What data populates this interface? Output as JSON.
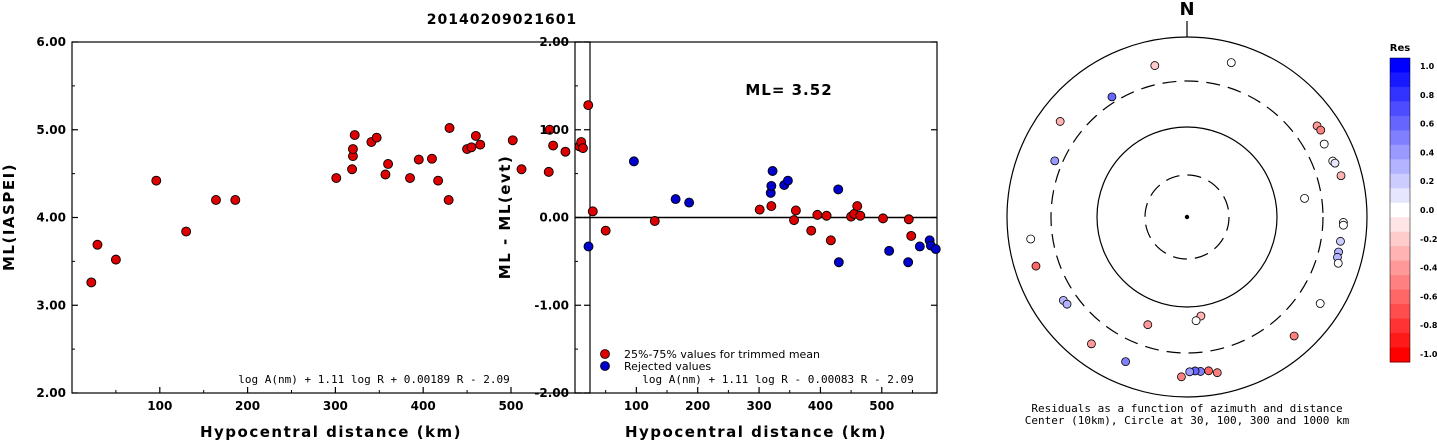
{
  "title": "20140209021601",
  "colors": {
    "red": "#dd0000",
    "blue": "#0000cc",
    "black": "#000000"
  },
  "chart_data": [
    {
      "type": "scatter",
      "title": "20140209021601",
      "xlabel": "Hypocentral distance (km)",
      "ylabel": "ML(IASPEI)",
      "xlim": [
        0,
        590
      ],
      "ylim": [
        2.0,
        6.0
      ],
      "xticks": [
        "100",
        "200",
        "300",
        "400",
        "500"
      ],
      "yticks": [
        "2.00",
        "3.00",
        "4.00",
        "5.00",
        "6.00"
      ],
      "formula": "log A(nm) + 1.11 log R + 0.00189 R - 2.09",
      "series": [
        {
          "color": "red",
          "points": [
            [
              22,
              3.26
            ],
            [
              29,
              3.69
            ],
            [
              50,
              3.52
            ],
            [
              96,
              4.42
            ],
            [
              130,
              3.84
            ],
            [
              164,
              4.2
            ],
            [
              186,
              4.2
            ],
            [
              301,
              4.45
            ],
            [
              319,
              4.55
            ],
            [
              320,
              4.7
            ],
            [
              320,
              4.78
            ],
            [
              322,
              4.94
            ],
            [
              341,
              4.86
            ],
            [
              347,
              4.91
            ],
            [
              357,
              4.49
            ],
            [
              360,
              4.61
            ],
            [
              385,
              4.45
            ],
            [
              395,
              4.66
            ],
            [
              410,
              4.67
            ],
            [
              417,
              4.42
            ],
            [
              429,
              4.2
            ],
            [
              430,
              5.02
            ],
            [
              450,
              4.78
            ],
            [
              455,
              4.8
            ],
            [
              460,
              4.93
            ],
            [
              465,
              4.83
            ],
            [
              502,
              4.88
            ],
            [
              512,
              4.55
            ],
            [
              543,
              4.52
            ],
            [
              544,
              5.0
            ],
            [
              548,
              4.82
            ],
            [
              562,
              4.75
            ],
            [
              578,
              4.81
            ],
            [
              580,
              4.86
            ],
            [
              582,
              4.79
            ],
            [
              588,
              5.28
            ]
          ]
        }
      ]
    },
    {
      "type": "scatter",
      "xlabel": "Hypocentral distance (km)",
      "ylabel": "ML - ML(evt)",
      "xlim": [
        0,
        590
      ],
      "ylim": [
        -2.0,
        2.0
      ],
      "xticks": [
        "100",
        "200",
        "300",
        "400",
        "500"
      ],
      "yticks": [
        "-2.00",
        "-1.00",
        "0.00",
        "1.00",
        "2.00"
      ],
      "annotation": "ML= 3.52",
      "formula": "log A(nm) + 1.11 log R - 0.00083 R - 2.09",
      "legend": {
        "position": "bottom-left",
        "entries": [
          "25%-75% values for trimmed mean",
          "Rejected values"
        ]
      },
      "series": [
        {
          "name": "25%-75% values for trimmed mean",
          "color": "red",
          "points": [
            [
              29,
              0.07
            ],
            [
              50,
              -0.15
            ],
            [
              130,
              -0.04
            ],
            [
              301,
              0.09
            ],
            [
              320,
              0.13
            ],
            [
              360,
              0.08
            ],
            [
              357,
              -0.03
            ],
            [
              385,
              -0.15
            ],
            [
              395,
              0.03
            ],
            [
              410,
              0.02
            ],
            [
              417,
              -0.26
            ],
            [
              450,
              0.01
            ],
            [
              455,
              0.04
            ],
            [
              460,
              0.13
            ],
            [
              465,
              0.02
            ],
            [
              502,
              -0.01
            ],
            [
              544,
              -0.02
            ],
            [
              548,
              -0.21
            ]
          ]
        },
        {
          "name": "Rejected values",
          "color": "blue",
          "points": [
            [
              22,
              -0.33
            ],
            [
              96,
              0.64
            ],
            [
              164,
              0.21
            ],
            [
              186,
              0.17
            ],
            [
              319,
              0.28
            ],
            [
              320,
              0.36
            ],
            [
              322,
              0.53
            ],
            [
              341,
              0.37
            ],
            [
              347,
              0.42
            ],
            [
              429,
              0.32
            ],
            [
              430,
              -0.51
            ],
            [
              512,
              -0.38
            ],
            [
              543,
              -0.51
            ],
            [
              562,
              -0.33
            ],
            [
              578,
              -0.26
            ],
            [
              580,
              -0.32
            ],
            [
              588,
              -0.36
            ]
          ]
        }
      ]
    },
    {
      "type": "scatter",
      "subtype": "polar residual map",
      "north_label": "N",
      "caption_line1": "Residuals as a function of azimuth and distance",
      "caption_line2": "Center (10km), Circle at 30, 100, 300 and 1000 km",
      "colorbar": {
        "title": "Res",
        "ticks": [
          "1.0",
          "0.8",
          "0.6",
          "0.4",
          "0.2",
          "0.0",
          "-0.2",
          "-0.4",
          "-0.6",
          "-0.8",
          "-1.0"
        ],
        "range": [
          -1.0,
          1.0
        ]
      },
      "stations": [
        {
          "az": 16,
          "dist": 588,
          "res": 0.0
        },
        {
          "az": 348,
          "dist": 502,
          "res": -0.2
        },
        {
          "az": 307,
          "dist": 560,
          "res": -0.3
        },
        {
          "az": 328,
          "dist": 350,
          "res": 0.6
        },
        {
          "az": 293,
          "dist": 370,
          "res": 0.4
        },
        {
          "az": 55,
          "dist": 560,
          "res": -0.4
        },
        {
          "az": 57,
          "dist": 570,
          "res": -0.5
        },
        {
          "az": 62,
          "dist": 510,
          "res": 0.0
        },
        {
          "az": 69,
          "dist": 520,
          "res": 0.0
        },
        {
          "az": 70,
          "dist": 540,
          "res": 0.1
        },
        {
          "az": 75,
          "dist": 570,
          "res": -0.3
        },
        {
          "az": 81,
          "dist": 200,
          "res": 0.0
        },
        {
          "az": 92,
          "dist": 525,
          "res": 0.0
        },
        {
          "az": 93,
          "dist": 527,
          "res": 0.0
        },
        {
          "az": 99,
          "dist": 510,
          "res": 0.2
        },
        {
          "az": 103,
          "dist": 512,
          "res": 0.3
        },
        {
          "az": 105,
          "dist": 515,
          "res": 0.3
        },
        {
          "az": 107,
          "dist": 550,
          "res": 0.0
        },
        {
          "az": 123,
          "dist": 560,
          "res": 0.0
        },
        {
          "az": 138,
          "dist": 580,
          "res": -0.5
        },
        {
          "az": 169,
          "dist": 557,
          "res": -0.5
        },
        {
          "az": 172,
          "dist": 509,
          "res": -0.6
        },
        {
          "az": 175,
          "dist": 505,
          "res": 0.5
        },
        {
          "az": 177,
          "dist": 493,
          "res": 0.6
        },
        {
          "az": 179,
          "dist": 502,
          "res": 0.4
        },
        {
          "az": 182,
          "dist": 577,
          "res": -0.5
        },
        {
          "az": 203,
          "dist": 535,
          "res": 0.5
        },
        {
          "az": 217,
          "dist": 560,
          "res": -0.4
        },
        {
          "az": 236,
          "dist": 430,
          "res": 0.3
        },
        {
          "az": 234,
          "dist": 420,
          "res": 0.3
        },
        {
          "az": 252,
          "dist": 560,
          "res": -0.6
        },
        {
          "az": 262,
          "dist": 545,
          "res": 0.0
        },
        {
          "az": 172,
          "dist": 127,
          "res": -0.3
        },
        {
          "az": 175,
          "dist": 140,
          "res": 0.0
        },
        {
          "az": 200,
          "dist": 180,
          "res": -0.4
        }
      ]
    }
  ]
}
